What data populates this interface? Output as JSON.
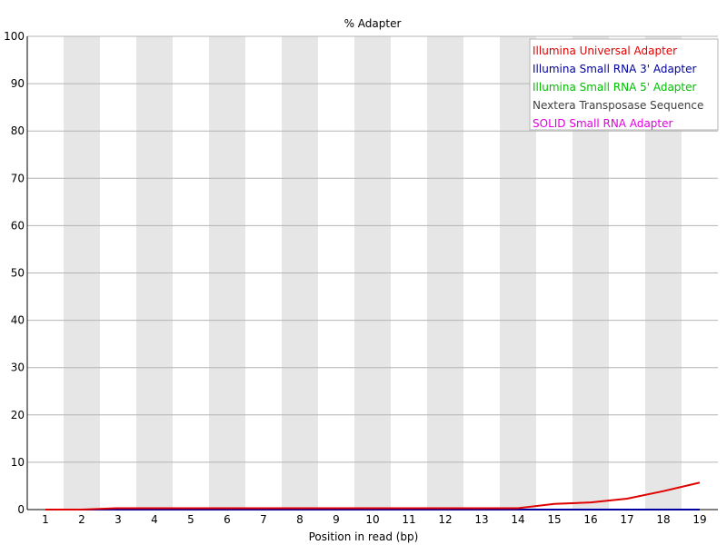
{
  "chart_data": {
    "type": "line",
    "title": "% Adapter",
    "xlabel": "Position in read (bp)",
    "ylabel": "",
    "x": [
      1,
      2,
      3,
      4,
      5,
      6,
      7,
      8,
      9,
      10,
      11,
      12,
      13,
      14,
      15,
      16,
      17,
      18,
      19
    ],
    "ylim": [
      0,
      100
    ],
    "yticks": [
      0,
      10,
      20,
      30,
      40,
      50,
      60,
      70,
      80,
      90,
      100
    ],
    "grid": true,
    "alternating_bands": true,
    "legend_position": "top-right",
    "series": [
      {
        "name": "Illumina Universal Adapter",
        "color": "#e00000",
        "values": [
          0.0,
          0.0,
          0.3,
          0.3,
          0.3,
          0.3,
          0.3,
          0.3,
          0.3,
          0.3,
          0.3,
          0.3,
          0.3,
          0.3,
          1.2,
          1.5,
          2.3,
          3.9,
          5.7
        ]
      },
      {
        "name": "Illumina Small RNA 3' Adapter",
        "color": "#0000a0",
        "values": [
          0,
          0,
          0,
          0,
          0,
          0,
          0,
          0,
          0,
          0,
          0,
          0,
          0,
          0,
          0,
          0,
          0,
          0,
          0
        ]
      },
      {
        "name": "Illumina Small RNA 5' Adapter",
        "color": "#00c000",
        "values": [
          0,
          0,
          0,
          0,
          0,
          0,
          0,
          0,
          0,
          0,
          0,
          0,
          0,
          0,
          0,
          0,
          0,
          0,
          0
        ]
      },
      {
        "name": "Nextera Transposase Sequence",
        "color": "#404040",
        "values": [
          0,
          0,
          0,
          0,
          0,
          0,
          0,
          0,
          0,
          0,
          0,
          0,
          0,
          0,
          0,
          0,
          0,
          0,
          0
        ]
      },
      {
        "name": "SOLID Small RNA Adapter",
        "color": "#e000e0",
        "values": [
          0,
          0,
          0,
          0,
          0,
          0,
          0,
          0,
          0,
          0,
          0,
          0,
          0,
          0,
          0,
          0,
          0,
          0,
          0
        ]
      }
    ]
  }
}
